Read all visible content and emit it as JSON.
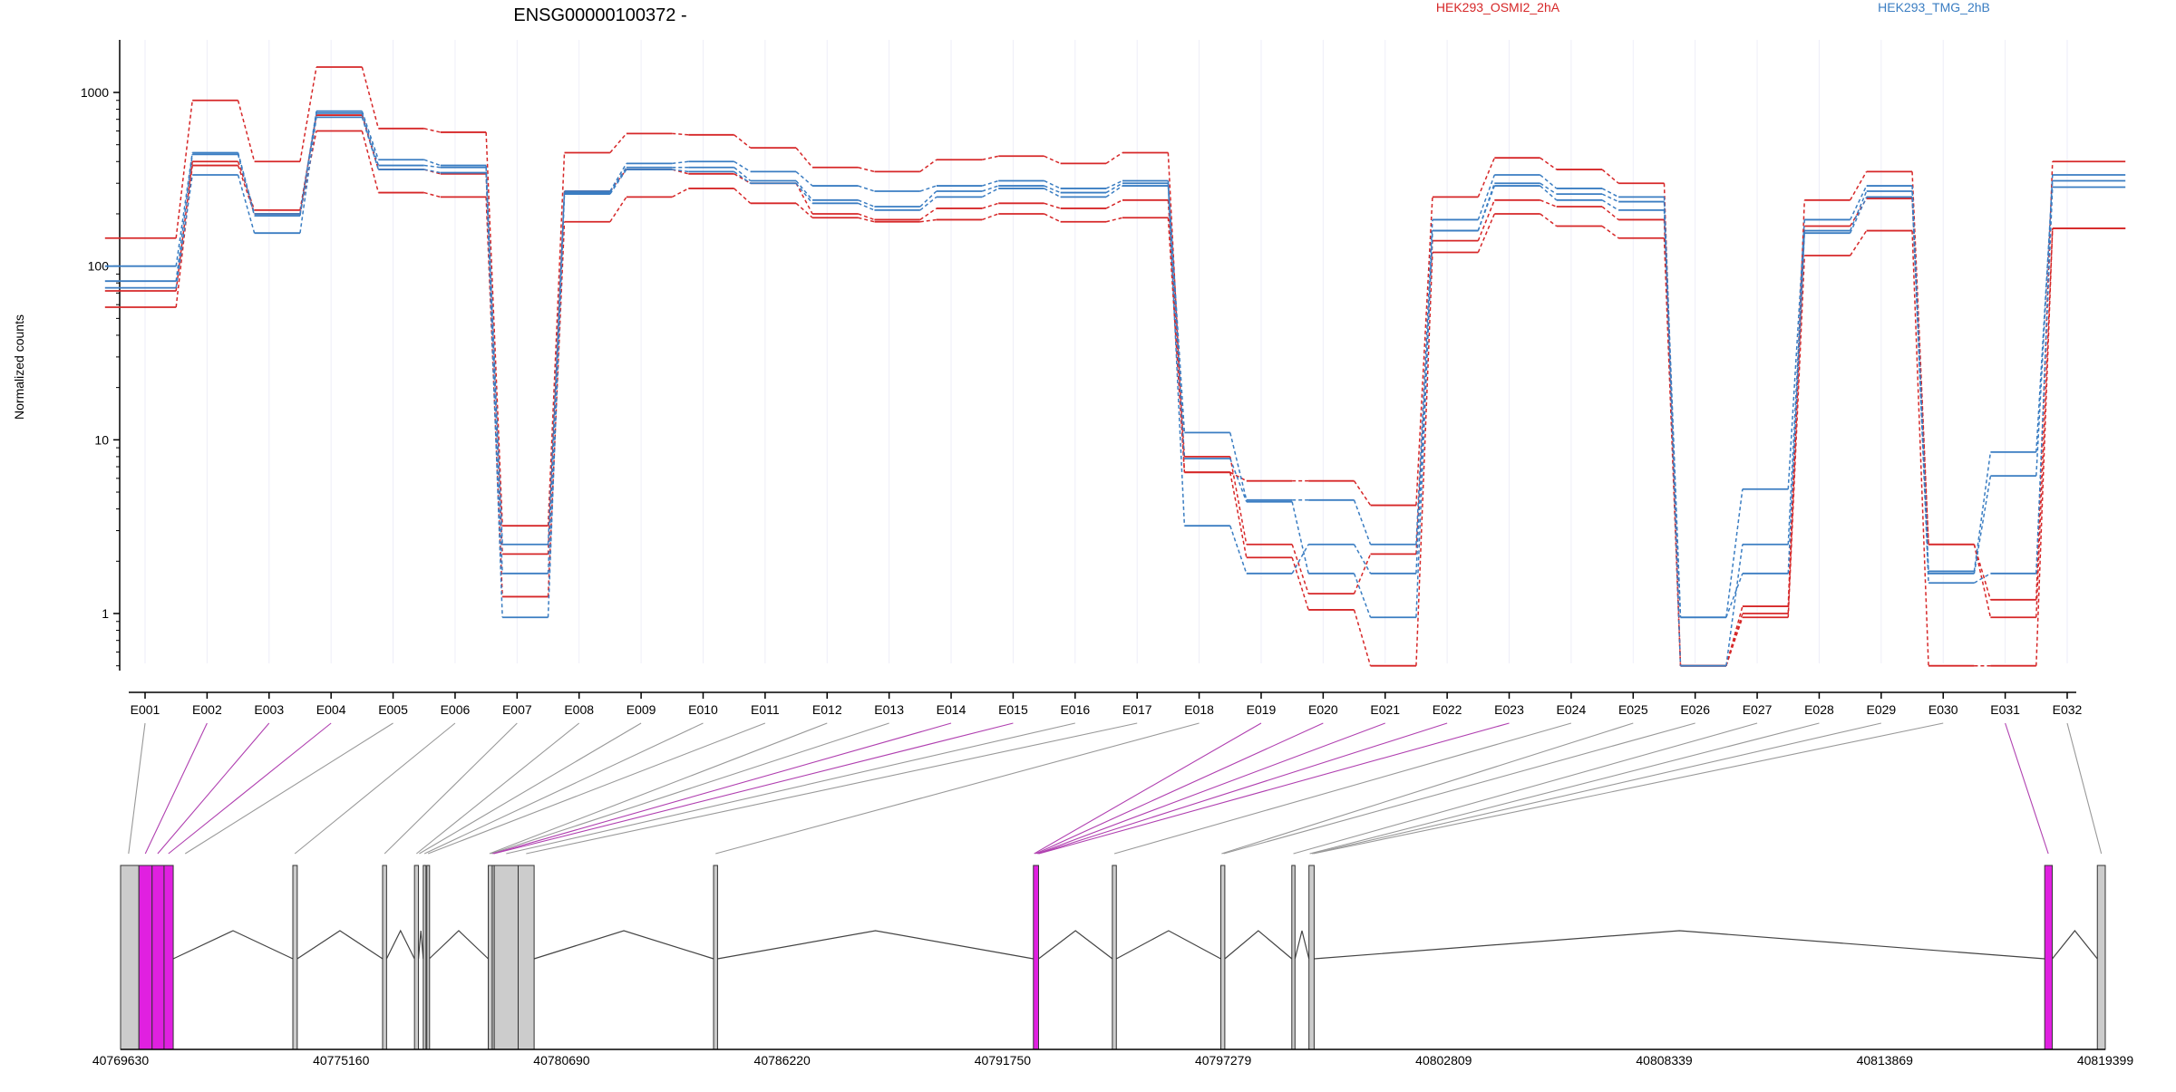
{
  "chart_data": {
    "type": "line",
    "title": "ENSG00000100372 -",
    "ylabel": "Normalized counts",
    "yscale": "log",
    "ylim": [
      0.5,
      1900
    ],
    "yticks": [
      1,
      10,
      100,
      1000
    ],
    "ytick_labels": [
      "1",
      "10",
      "100",
      "1000"
    ],
    "categories": [
      "E001",
      "E002",
      "E003",
      "E004",
      "E005",
      "E006",
      "E007",
      "E008",
      "E009",
      "E010",
      "E011",
      "E012",
      "E013",
      "E014",
      "E015",
      "E016",
      "E017",
      "E018",
      "E019",
      "E020",
      "E021",
      "E022",
      "E023",
      "E024",
      "E025",
      "E026",
      "E027",
      "E028",
      "E029",
      "E030",
      "E031",
      "E032"
    ],
    "legend": [
      {
        "name": "HEK293_OSMI2_2hA",
        "color": "#d62728"
      },
      {
        "name": "HEK293_TMG_2hB",
        "color": "#3a7dc2"
      }
    ],
    "series": [
      {
        "group": "HEK293_OSMI2_2hA",
        "color": "#d62728",
        "values": [
          145,
          900,
          400,
          1400,
          620,
          590,
          3.2,
          450,
          580,
          570,
          480,
          370,
          350,
          410,
          430,
          390,
          450,
          6.5,
          5.8,
          5.8,
          4.2,
          250,
          420,
          360,
          300,
          0.5,
          1.1,
          240,
          350,
          2.5,
          1.2,
          400
        ]
      },
      {
        "group": "HEK293_OSMI2_2hA",
        "color": "#d62728",
        "values": [
          72,
          400,
          210,
          740,
          360,
          340,
          2.2,
          270,
          360,
          340,
          300,
          200,
          185,
          215,
          230,
          215,
          240,
          8,
          2.5,
          1.3,
          2.2,
          140,
          240,
          220,
          185,
          0.5,
          1,
          170,
          245,
          2.5,
          0.95,
          165
        ]
      },
      {
        "group": "HEK293_OSMI2_2hA",
        "color": "#d62728",
        "values": [
          58,
          380,
          200,
          600,
          265,
          250,
          1.25,
          180,
          250,
          280,
          230,
          190,
          180,
          185,
          200,
          180,
          190,
          6.5,
          2.1,
          1.05,
          0.5,
          120,
          200,
          170,
          145,
          0.5,
          0.95,
          115,
          160,
          0.5,
          0.5,
          165
        ]
      },
      {
        "group": "HEK293_TMG_2hB",
        "color": "#3a7dc2",
        "values": [
          100,
          450,
          200,
          780,
          410,
          380,
          2.5,
          270,
          390,
          400,
          350,
          290,
          270,
          290,
          310,
          280,
          310,
          11,
          4.5,
          4.5,
          2.5,
          185,
          335,
          280,
          250,
          0.95,
          5.2,
          185,
          290,
          1.7,
          6.2,
          335
        ]
      },
      {
        "group": "HEK293_TMG_2hB",
        "color": "#3a7dc2",
        "values": [
          82,
          440,
          195,
          760,
          380,
          370,
          1.7,
          265,
          370,
          370,
          310,
          240,
          220,
          270,
          290,
          265,
          300,
          3.2,
          1.7,
          2.5,
          1.7,
          160,
          300,
          260,
          235,
          0.5,
          2.5,
          160,
          270,
          1.75,
          8.5,
          310
        ]
      },
      {
        "group": "HEK293_TMG_2hB",
        "color": "#3a7dc2",
        "values": [
          75,
          335,
          155,
          720,
          360,
          345,
          0.95,
          260,
          360,
          350,
          300,
          230,
          210,
          250,
          280,
          250,
          290,
          7.8,
          4.4,
          1.7,
          0.95,
          160,
          290,
          240,
          210,
          0.95,
          1.7,
          155,
          250,
          1.5,
          1.7,
          285
        ]
      }
    ],
    "gene_model": {
      "coordinate_ticks": [
        40769630,
        40775160,
        40780690,
        40786220,
        40791750,
        40797279,
        40802809,
        40808339,
        40813869,
        40819399
      ],
      "coordinate_range": [
        40769630,
        40819399
      ],
      "highlight_color": "#e020e0",
      "exon_color": "#cccccc",
      "exons": [
        {
          "start": 40769630,
          "end": 40770090,
          "highlight": false
        },
        {
          "start": 40770090,
          "end": 40770420,
          "highlight": true
        },
        {
          "start": 40770420,
          "end": 40770720,
          "highlight": true
        },
        {
          "start": 40770720,
          "end": 40770950,
          "highlight": true
        },
        {
          "start": 40773950,
          "end": 40774060,
          "highlight": false
        },
        {
          "start": 40776200,
          "end": 40776300,
          "highlight": false
        },
        {
          "start": 40777000,
          "end": 40777100,
          "highlight": false
        },
        {
          "start": 40777220,
          "end": 40777270,
          "highlight": false
        },
        {
          "start": 40777310,
          "end": 40777370,
          "highlight": false
        },
        {
          "start": 40778850,
          "end": 40778950,
          "highlight": false
        },
        {
          "start": 40778950,
          "end": 40779000,
          "highlight": false
        },
        {
          "start": 40779000,
          "end": 40779600,
          "highlight": false
        },
        {
          "start": 40779600,
          "end": 40780000,
          "highlight": false
        },
        {
          "start": 40784500,
          "end": 40784600,
          "highlight": false
        },
        {
          "start": 40792520,
          "end": 40792650,
          "highlight": true
        },
        {
          "start": 40794500,
          "end": 40794600,
          "highlight": false
        },
        {
          "start": 40797220,
          "end": 40797320,
          "highlight": false
        },
        {
          "start": 40799000,
          "end": 40799080,
          "highlight": false
        },
        {
          "start": 40799430,
          "end": 40799560,
          "highlight": false
        },
        {
          "start": 40817880,
          "end": 40818070,
          "highlight": true
        },
        {
          "start": 40819200,
          "end": 40819399,
          "highlight": false
        }
      ],
      "bin_links": [
        {
          "bin": "E001",
          "pos": 40769830,
          "highlight": false
        },
        {
          "bin": "E002",
          "pos": 40770250,
          "highlight": true
        },
        {
          "bin": "E003",
          "pos": 40770560,
          "highlight": true
        },
        {
          "bin": "E004",
          "pos": 40770830,
          "highlight": true
        },
        {
          "bin": "E005",
          "pos": 40771250,
          "highlight": false
        },
        {
          "bin": "E006",
          "pos": 40774000,
          "highlight": false
        },
        {
          "bin": "E007",
          "pos": 40776250,
          "highlight": false
        },
        {
          "bin": "E008",
          "pos": 40777050,
          "highlight": false
        },
        {
          "bin": "E009",
          "pos": 40777120,
          "highlight": false
        },
        {
          "bin": "E010",
          "pos": 40777250,
          "highlight": false
        },
        {
          "bin": "E011",
          "pos": 40777340,
          "highlight": false
        },
        {
          "bin": "E012",
          "pos": 40778880,
          "highlight": false
        },
        {
          "bin": "E013",
          "pos": 40778920,
          "highlight": false
        },
        {
          "bin": "E014",
          "pos": 40778960,
          "highlight": true
        },
        {
          "bin": "E015",
          "pos": 40778990,
          "highlight": true
        },
        {
          "bin": "E016",
          "pos": 40779300,
          "highlight": false
        },
        {
          "bin": "E017",
          "pos": 40779800,
          "highlight": false
        },
        {
          "bin": "E018",
          "pos": 40784550,
          "highlight": false
        },
        {
          "bin": "E019",
          "pos": 40792540,
          "highlight": true
        },
        {
          "bin": "E020",
          "pos": 40792580,
          "highlight": true
        },
        {
          "bin": "E021",
          "pos": 40792620,
          "highlight": true
        },
        {
          "bin": "E022",
          "pos": 40792640,
          "highlight": true
        },
        {
          "bin": "E023",
          "pos": 40792660,
          "highlight": true
        },
        {
          "bin": "E024",
          "pos": 40794550,
          "highlight": false
        },
        {
          "bin": "E025",
          "pos": 40797240,
          "highlight": false
        },
        {
          "bin": "E026",
          "pos": 40797290,
          "highlight": false
        },
        {
          "bin": "E027",
          "pos": 40799040,
          "highlight": false
        },
        {
          "bin": "E028",
          "pos": 40799450,
          "highlight": false
        },
        {
          "bin": "E029",
          "pos": 40799500,
          "highlight": false
        },
        {
          "bin": "E030",
          "pos": 40799540,
          "highlight": false
        },
        {
          "bin": "E031",
          "pos": 40817970,
          "highlight": true
        },
        {
          "bin": "E032",
          "pos": 40819300,
          "highlight": false
        }
      ]
    }
  }
}
